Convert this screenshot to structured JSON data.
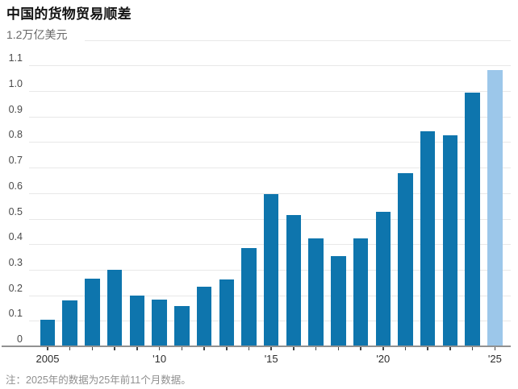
{
  "chart_data": {
    "type": "bar",
    "title": "中国的货物贸易顺差",
    "unit_label": "1.2万亿美元",
    "note": "注：2025年的数据为25年前11个月数据。",
    "categories": [
      2005,
      2006,
      2007,
      2008,
      2009,
      2010,
      2011,
      2012,
      2013,
      2014,
      2015,
      2016,
      2017,
      2018,
      2019,
      2020,
      2021,
      2022,
      2023,
      2024,
      2025
    ],
    "values": [
      0.102,
      0.177,
      0.263,
      0.296,
      0.196,
      0.181,
      0.155,
      0.231,
      0.259,
      0.383,
      0.594,
      0.51,
      0.42,
      0.351,
      0.421,
      0.524,
      0.676,
      0.838,
      0.822,
      0.992,
      1.078
    ],
    "ylim": [
      0,
      1.2
    ],
    "grid": true,
    "y_tick_labels": [
      "0",
      "0.1",
      "0.2",
      "0.3",
      "0.4",
      "0.5",
      "0.6",
      "0.7",
      "0.8",
      "0.9",
      "1.0",
      "1.1"
    ],
    "x_tick_labels": [
      {
        "index": 0,
        "label": "2005"
      },
      {
        "index": 5,
        "label": "'10"
      },
      {
        "index": 10,
        "label": "'15"
      },
      {
        "index": 15,
        "label": "'20"
      },
      {
        "index": 20,
        "label": "'25"
      }
    ],
    "bar_color": "#0e75ad",
    "highlight_bar_color": "#9cc7ea",
    "highlight_index": 20,
    "axis_color": "#919191",
    "gridline_color": "#e8e8e8"
  }
}
